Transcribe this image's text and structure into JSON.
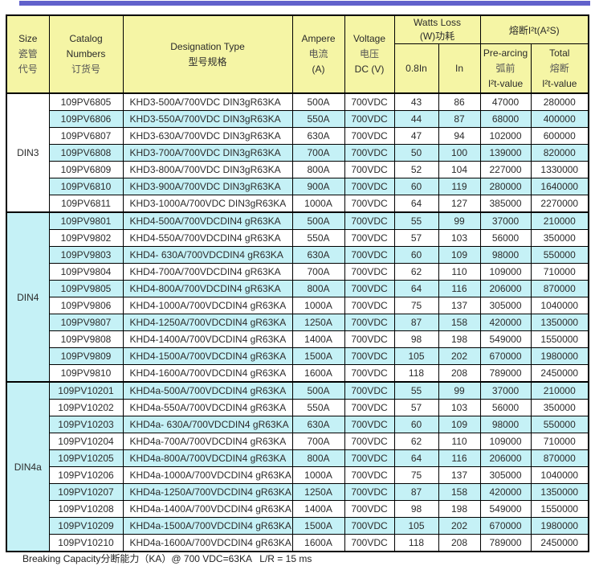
{
  "page": {
    "footer_note": "Breaking Capacity分断能力（KA）@ 700 VDC=63KA   L/R = 15 ms",
    "colors": {
      "top_bar": "#6161cb",
      "header_bg": "#f5f5a5",
      "row_alt_bg": "#c5f1f6",
      "border": "#000000"
    }
  },
  "table": {
    "header": {
      "size": {
        "en": "Size",
        "cn1": "瓷管",
        "cn2": "代号"
      },
      "catalog": {
        "en1": "Catalog",
        "en2": "Numbers",
        "cn": "订货号"
      },
      "designation": {
        "en": "Designation Type",
        "cn": "型号规格"
      },
      "ampere": {
        "en": "Ampere",
        "cn": "电流",
        "unit": "(A)"
      },
      "voltage": {
        "en": "Voltage",
        "cn": "电压",
        "unit": "DC (V)"
      },
      "watts_group": {
        "en": "Watts Loss",
        "cn": "(W)功耗"
      },
      "watts_col_08": "0.8In",
      "watts_col_in": "In",
      "i2t_group": "熔断I²t(A²S)",
      "prearcing": {
        "en": "Pre-arcing",
        "cn": "弧前",
        "sub": "I²t-value"
      },
      "total": {
        "en": "Total",
        "cn": "熔断",
        "sub": "I²t-value"
      }
    },
    "groups": [
      {
        "size": "DIN3",
        "rows": [
          [
            "109PV6805",
            "KHD3-500A/700VDC DIN3gR63KA",
            "500A",
            "700VDC",
            "43",
            "86",
            "47000",
            "280000"
          ],
          [
            "109PV6806",
            "KHD3-550A/700VDC DIN3gR63KA",
            "550A",
            "700VDC",
            "44",
            "87",
            "68000",
            "400000"
          ],
          [
            "109PV6807",
            "KHD3-630A/700VDC DIN3gR63KA",
            "630A",
            "700VDC",
            "47",
            "94",
            "102000",
            "600000"
          ],
          [
            "109PV6808",
            "KHD3-700A/700VDC DIN3gR63KA",
            "700A",
            "700VDC",
            "50",
            "100",
            "139000",
            "820000"
          ],
          [
            "109PV6809",
            "KHD3-800A/700VDC DIN3gR63KA",
            "800A",
            "700VDC",
            "52",
            "104",
            "227000",
            "1330000"
          ],
          [
            "109PV6810",
            "KHD3-900A/700VDC DIN3gR63KA",
            "900A",
            "700VDC",
            "60",
            "119",
            "280000",
            "1640000"
          ],
          [
            "109PV6811",
            "KHD3-1000A/700VDC DIN3gR63KA",
            "1000A",
            "700VDC",
            "64",
            "127",
            "385000",
            "2270000"
          ]
        ]
      },
      {
        "size": "DIN4",
        "rows": [
          [
            "109PV9801",
            "KHD4-500A/700VDCDIN4 gR63KA",
            "500A",
            "700VDC",
            "55",
            "99",
            "37000",
            "210000"
          ],
          [
            "109PV9802",
            "KHD4-550A/700VDCDIN4 gR63KA",
            "550A",
            "700VDC",
            "57",
            "103",
            "56000",
            "350000"
          ],
          [
            "109PV9803",
            "KHD4- 630A/700VDCDIN4 gR63KA",
            "630A",
            "700VDC",
            "60",
            "109",
            "98000",
            "550000"
          ],
          [
            "109PV9804",
            "KHD4-700A/700VDCDIN4 gR63KA",
            "700A",
            "700VDC",
            "62",
            "110",
            "109000",
            "710000"
          ],
          [
            "109PV9805",
            "KHD4-800A/700VDCDIN4 gR63KA",
            "800A",
            "700VDC",
            "64",
            "116",
            "206000",
            "870000"
          ],
          [
            "109PV9806",
            "KHD4-1000A/700VDCDIN4 gR63KA",
            "1000A",
            "700VDC",
            "75",
            "137",
            "305000",
            "1040000"
          ],
          [
            "109PV9807",
            "KHD4-1250A/700VDCDIN4 gR63KA",
            "1250A",
            "700VDC",
            "87",
            "158",
            "420000",
            "1350000"
          ],
          [
            "109PV9808",
            "KHD4-1400A/700VDCDIN4 gR63KA",
            "1400A",
            "700VDC",
            "98",
            "198",
            "549000",
            "1550000"
          ],
          [
            "109PV9809",
            "KHD4-1500A/700VDCDIN4 gR63KA",
            "1500A",
            "700VDC",
            "105",
            "202",
            "670000",
            "1980000"
          ],
          [
            "109PV9810",
            "KHD4-1600A/700VDCDIN4 gR63KA",
            "1600A",
            "700VDC",
            "118",
            "208",
            "789000",
            "2450000"
          ]
        ]
      },
      {
        "size": "DIN4a",
        "rows": [
          [
            "109PV10201",
            "KHD4a-500A/700VDCDIN4 gR63KA",
            "500A",
            "700VDC",
            "55",
            "99",
            "37000",
            "210000"
          ],
          [
            "109PV10202",
            "KHD4a-550A/700VDCDIN4 gR63KA",
            "550A",
            "700VDC",
            "57",
            "103",
            "56000",
            "350000"
          ],
          [
            "109PV10203",
            "KHD4a- 630A/700VDCDIN4 gR63KA",
            "630A",
            "700VDC",
            "60",
            "109",
            "98000",
            "550000"
          ],
          [
            "109PV10204",
            "KHD4a-700A/700VDCDIN4 gR63KA",
            "700A",
            "700VDC",
            "62",
            "110",
            "109000",
            "710000"
          ],
          [
            "109PV10205",
            "KHD4a-800A/700VDCDIN4 gR63KA",
            "800A",
            "700VDC",
            "64",
            "116",
            "206000",
            "870000"
          ],
          [
            "109PV10206",
            "KHD4a-1000A/700VDCDIN4 gR63KA",
            "1000A",
            "700VDC",
            "75",
            "137",
            "305000",
            "1040000"
          ],
          [
            "109PV10207",
            "KHD4a-1250A/700VDCDIN4 gR63KA",
            "1250A",
            "700VDC",
            "87",
            "158",
            "420000",
            "1350000"
          ],
          [
            "109PV10208",
            "KHD4a-1400A/700VDCDIN4 gR63KA",
            "1400A",
            "700VDC",
            "98",
            "198",
            "549000",
            "1550000"
          ],
          [
            "109PV10209",
            "KHD4a-1500A/700VDCDIN4 gR63KA",
            "1500A",
            "700VDC",
            "105",
            "202",
            "670000",
            "1980000"
          ],
          [
            "109PV10210",
            "KHD4a-1600A/700VDCDIN4 gR63KA",
            "1600A",
            "700VDC",
            "118",
            "208",
            "789000",
            "2450000"
          ]
        ]
      }
    ]
  }
}
